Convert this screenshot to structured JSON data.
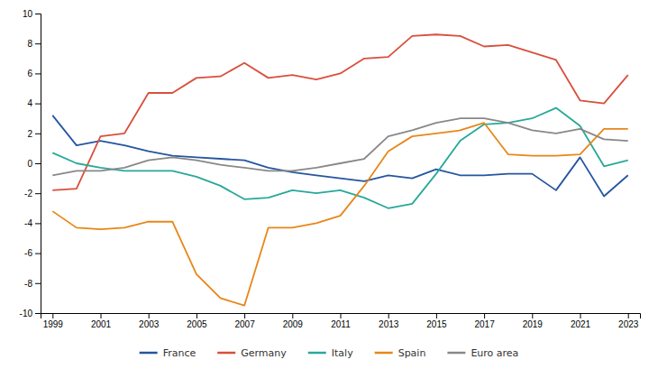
{
  "chart_data": {
    "type": "line",
    "x": [
      1999,
      2000,
      2001,
      2002,
      2003,
      2004,
      2005,
      2006,
      2007,
      2008,
      2009,
      2010,
      2011,
      2012,
      2013,
      2014,
      2015,
      2016,
      2017,
      2018,
      2019,
      2020,
      2021,
      2022,
      2023
    ],
    "series": [
      {
        "name": "France",
        "color": "#2555a0",
        "values": [
          3.2,
          1.2,
          1.5,
          1.2,
          0.8,
          0.5,
          0.4,
          0.3,
          0.2,
          -0.3,
          -0.6,
          -0.8,
          -1.0,
          -1.2,
          -0.8,
          -1.0,
          -0.4,
          -0.8,
          -0.8,
          -0.7,
          -0.7,
          -1.8,
          0.4,
          -2.2,
          -0.8
        ]
      },
      {
        "name": "Germany",
        "color": "#d94f3d",
        "values": [
          -1.8,
          -1.7,
          1.8,
          2.0,
          4.7,
          4.7,
          5.7,
          5.8,
          6.7,
          5.7,
          5.9,
          5.6,
          6.0,
          7.0,
          7.1,
          8.5,
          8.6,
          8.5,
          7.8,
          7.9,
          7.4,
          6.9,
          4.2,
          4.0,
          5.9
        ]
      },
      {
        "name": "Italy",
        "color": "#28a89a",
        "values": [
          0.7,
          0.0,
          -0.3,
          -0.5,
          -0.5,
          -0.5,
          -0.9,
          -1.5,
          -2.4,
          -2.3,
          -1.8,
          -2.0,
          -1.8,
          -2.3,
          -3.0,
          -2.7,
          -0.7,
          1.5,
          2.6,
          2.7,
          3.0,
          3.7,
          2.5,
          -0.2,
          0.2
        ]
      },
      {
        "name": "Spain",
        "color": "#e8861a",
        "values": [
          -3.2,
          -4.3,
          -4.4,
          -4.3,
          -3.9,
          -3.9,
          -7.4,
          -9.0,
          -9.5,
          -4.3,
          -4.3,
          -4.0,
          -3.5,
          -1.5,
          0.8,
          1.8,
          2.0,
          2.2,
          2.7,
          0.6,
          0.5,
          0.5,
          0.6,
          2.3,
          2.3
        ]
      },
      {
        "name": "Euro area",
        "color": "#888888",
        "values": [
          -0.8,
          -0.5,
          -0.5,
          -0.3,
          0.2,
          0.4,
          0.2,
          -0.1,
          -0.3,
          -0.5,
          -0.5,
          -0.3,
          0.0,
          0.3,
          1.8,
          2.2,
          2.7,
          3.0,
          3.0,
          2.7,
          2.2,
          2.0,
          2.3,
          1.6,
          1.5
        ]
      }
    ],
    "xlim": [
      1998.5,
      2023.5
    ],
    "xticks": [
      1999,
      2001,
      2003,
      2005,
      2007,
      2009,
      2011,
      2013,
      2015,
      2017,
      2019,
      2021,
      2023
    ],
    "ylim": [
      -10,
      10
    ],
    "yticks": [
      -10,
      -8,
      -6,
      -4,
      -2,
      0,
      2,
      4,
      6,
      8,
      10
    ],
    "grid": false,
    "legend": "bottom"
  }
}
